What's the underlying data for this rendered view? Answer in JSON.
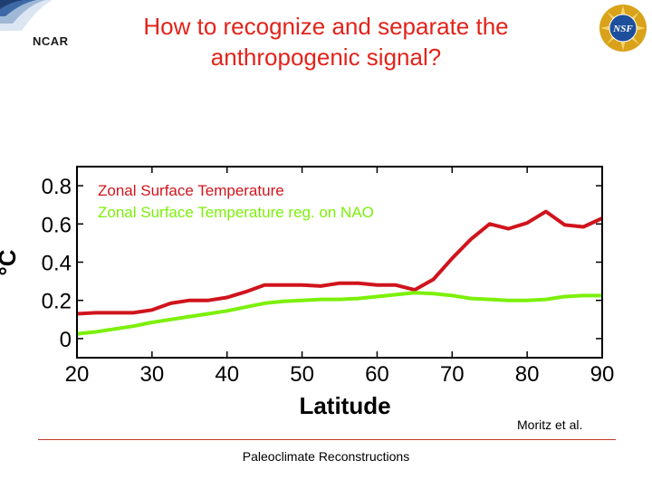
{
  "header": {
    "title_line1": "How to recognize and separate the",
    "title_line2": "anthropogenic signal?",
    "ncar_logo_text": "NCAR",
    "nsf_logo_text": "NSF"
  },
  "colors": {
    "title": "#e2231a",
    "series_red": "#d0141c",
    "series_green": "#7cf00a"
  },
  "chart_data": {
    "type": "line",
    "title": "",
    "xlabel": "Latitude",
    "ylabel": "°C",
    "xlim": [
      20,
      90
    ],
    "ylim": [
      -0.1,
      0.9
    ],
    "xticks": [
      "20",
      "30",
      "40",
      "50",
      "60",
      "70",
      "80",
      "90"
    ],
    "yticks": [
      "0",
      "0.2",
      "0.4",
      "0.6",
      "0.8"
    ],
    "legend_position": "top-left",
    "series": [
      {
        "name": "Zonal Surface Temperature",
        "color": "#d0141c",
        "x": [
          20,
          22.5,
          25,
          27.5,
          30,
          32.5,
          35,
          37.5,
          40,
          42.5,
          45,
          47.5,
          50,
          52.5,
          55,
          57.5,
          60,
          62.5,
          65,
          67.5,
          70,
          72.5,
          75,
          77.5,
          80,
          82.5,
          85,
          87.5,
          90
        ],
        "values": [
          0.13,
          0.135,
          0.135,
          0.135,
          0.15,
          0.185,
          0.2,
          0.2,
          0.215,
          0.245,
          0.28,
          0.28,
          0.28,
          0.275,
          0.29,
          0.29,
          0.28,
          0.28,
          0.255,
          0.31,
          0.42,
          0.52,
          0.6,
          0.575,
          0.605,
          0.665,
          0.595,
          0.585,
          0.63
        ]
      },
      {
        "name": "Zonal Surface Temperature reg. on NAO",
        "color": "#7cf00a",
        "x": [
          20,
          22.5,
          25,
          27.5,
          30,
          32.5,
          35,
          37.5,
          40,
          42.5,
          45,
          47.5,
          50,
          52.5,
          55,
          57.5,
          60,
          62.5,
          65,
          67.5,
          70,
          72.5,
          75,
          77.5,
          80,
          82.5,
          85,
          87.5,
          90
        ],
        "values": [
          0.025,
          0.035,
          0.05,
          0.065,
          0.085,
          0.1,
          0.115,
          0.13,
          0.145,
          0.165,
          0.185,
          0.195,
          0.2,
          0.205,
          0.205,
          0.21,
          0.22,
          0.23,
          0.24,
          0.235,
          0.225,
          0.21,
          0.205,
          0.2,
          0.2,
          0.205,
          0.22,
          0.225,
          0.225
        ]
      }
    ]
  },
  "credit": "Moritz et al.",
  "footer": "Paleoclimate Reconstructions"
}
